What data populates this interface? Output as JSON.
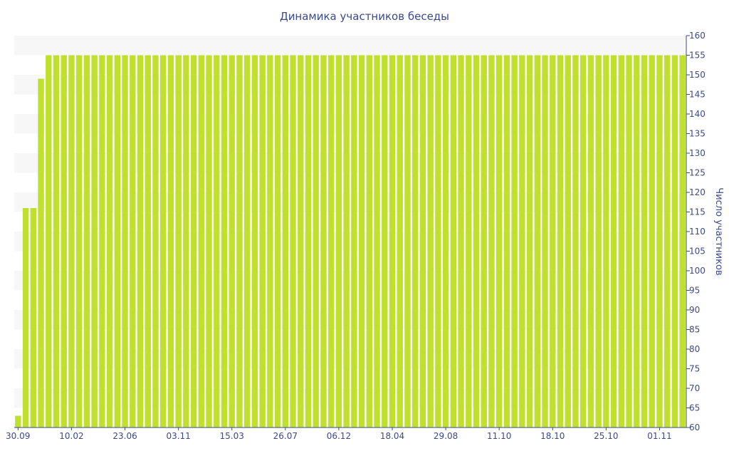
{
  "colors": {
    "bar": "#bfe12e",
    "text": "#3a4a8c",
    "axis": "#3a4a8c",
    "band": "#f7f7f7"
  },
  "chart_data": {
    "type": "bar",
    "title": "Динамика участников беседы",
    "xlabel": "",
    "ylabel": "Число участников",
    "ylim": [
      60,
      160
    ],
    "y_ticks": [
      60,
      65,
      70,
      75,
      80,
      85,
      90,
      95,
      100,
      105,
      110,
      115,
      120,
      125,
      130,
      135,
      140,
      145,
      150,
      155,
      160
    ],
    "y_axis_position": "right",
    "grid": "alternating horizontal bands",
    "x_tick_labels": [
      "30.09",
      "10.02",
      "23.06",
      "03.11",
      "15.03",
      "26.07",
      "06.12",
      "18.04",
      "29.08",
      "11.10",
      "18.10",
      "25.10",
      "01.11"
    ],
    "x_tick_bar_index": [
      0,
      7,
      14,
      21,
      28,
      35,
      42,
      49,
      56,
      63,
      70,
      77,
      84
    ],
    "values": [
      63,
      116,
      116,
      149,
      155,
      155,
      155,
      155,
      155,
      155,
      155,
      155,
      155,
      155,
      155,
      155,
      155,
      155,
      155,
      155,
      155,
      155,
      155,
      155,
      155,
      155,
      155,
      155,
      155,
      155,
      155,
      155,
      155,
      155,
      155,
      155,
      155,
      155,
      155,
      155,
      155,
      155,
      155,
      155,
      155,
      155,
      155,
      155,
      155,
      155,
      155,
      155,
      155,
      155,
      155,
      155,
      155,
      155,
      155,
      155,
      155,
      155,
      155,
      155,
      155,
      155,
      155,
      155,
      155,
      155,
      155,
      155,
      155,
      155,
      155,
      155,
      155,
      155,
      155,
      155,
      155,
      155,
      155,
      155,
      155,
      155,
      155,
      155
    ]
  }
}
